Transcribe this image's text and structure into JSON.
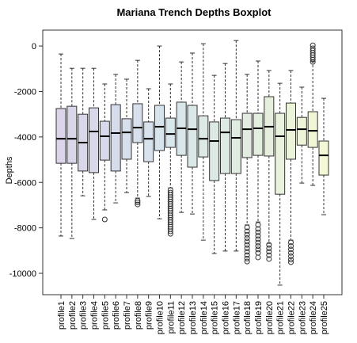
{
  "chart_data": {
    "type": "boxplot",
    "title": "Mariana Trench Depths Boxplot",
    "y_label": "Depths",
    "ylim": [
      -10940,
      700
    ],
    "yticks": [
      0,
      -2000,
      -4000,
      -6000,
      -8000,
      -10000
    ],
    "boxes": [
      {
        "name": "profile1",
        "color": "#dcd4e8",
        "whislo": -8360,
        "q1": -5160,
        "median": -4080,
        "q3": -2750,
        "whishi": -350,
        "fliers": []
      },
      {
        "name": "profile2",
        "color": "#dad6e9",
        "whislo": -8470,
        "q1": -5160,
        "median": -4080,
        "q3": -2650,
        "whishi": -980,
        "fliers": []
      },
      {
        "name": "profile3",
        "color": "#d9d7ea",
        "whislo": -6590,
        "q1": -5500,
        "median": -4250,
        "q3": -3000,
        "whishi": -980,
        "fliers": []
      },
      {
        "name": "profile4",
        "color": "#d8d8ea",
        "whislo": -7630,
        "q1": -5570,
        "median": -3760,
        "q3": -2720,
        "whishi": -980,
        "fliers": []
      },
      {
        "name": "profile5",
        "color": "#d7daeb",
        "whislo": -7210,
        "q1": -5020,
        "median": -3970,
        "q3": -3310,
        "whishi": -1670,
        "fliers": [
          -7630
        ]
      },
      {
        "name": "profile6",
        "color": "#d7dcec",
        "whislo": -6900,
        "q1": -5500,
        "median": -3830,
        "q3": -2580,
        "whishi": -1250,
        "fliers": []
      },
      {
        "name": "profile7",
        "color": "#d7deec",
        "whislo": -6450,
        "q1": -4980,
        "median": -3800,
        "q3": -3200,
        "whishi": -1460,
        "fliers": []
      },
      {
        "name": "profile8",
        "color": "#d7e0ec",
        "whislo": -6690,
        "q1": -4250,
        "median": -3590,
        "q3": -2540,
        "whishi": -630,
        "fliers": [
          -6800,
          -6880,
          -6970
        ]
      },
      {
        "name": "profile9",
        "color": "#d8e2ec",
        "whislo": -6620,
        "q1": -5090,
        "median": -4080,
        "q3": -3340,
        "whishi": -1880,
        "fliers": []
      },
      {
        "name": "profile10",
        "color": "#d8e4ec",
        "whislo": -7600,
        "q1": -4600,
        "median": -3550,
        "q3": -2610,
        "whishi": 0,
        "fliers": []
      },
      {
        "name": "profile11",
        "color": "#d9e6ec",
        "whislo": -6240,
        "q1": -4460,
        "median": -3870,
        "q3": -3170,
        "whishi": -1670,
        "fliers": [
          -6340,
          -6450,
          -6550,
          -6650,
          -6750,
          -6850,
          -6950,
          -7050,
          -7150,
          -7250,
          -7350,
          -7450,
          -7550,
          -7650,
          -7750,
          -7850,
          -7950,
          -8050,
          -8150,
          -8260
        ]
      },
      {
        "name": "profile12",
        "color": "#dae7ea",
        "whislo": -7320,
        "q1": -4810,
        "median": -3620,
        "q3": -2470,
        "whishi": -700,
        "fliers": []
      },
      {
        "name": "profile13",
        "color": "#dbe8e8",
        "whislo": -7390,
        "q1": -5330,
        "median": -3660,
        "q3": -2610,
        "whishi": -310,
        "fliers": []
      },
      {
        "name": "profile14",
        "color": "#dce9e7",
        "whislo": -8540,
        "q1": -4880,
        "median": -4080,
        "q3": -3070,
        "whishi": 100,
        "fliers": []
      },
      {
        "name": "profile15",
        "color": "#dde9e5",
        "whislo": -9130,
        "q1": -5920,
        "median": -4180,
        "q3": -3340,
        "whishi": -1290,
        "fliers": []
      },
      {
        "name": "profile16",
        "color": "#deeae4",
        "whislo": -9020,
        "q1": -5610,
        "median": -3800,
        "q3": -3170,
        "whishi": -770,
        "fliers": []
      },
      {
        "name": "profile17",
        "color": "#e0ebe2",
        "whislo": -9020,
        "q1": -5610,
        "median": -4040,
        "q3": -3240,
        "whishi": 240,
        "fliers": []
      },
      {
        "name": "profile18",
        "color": "#e2ece0",
        "whislo": -7870,
        "q1": -4910,
        "median": -3660,
        "q3": -2960,
        "whishi": -1250,
        "fliers": [
          -7980,
          -8150,
          -8300,
          -8450,
          -8600,
          -8750,
          -8900,
          -9050,
          -9200,
          -9350,
          -9480
        ]
      },
      {
        "name": "profile19",
        "color": "#e4eedf",
        "whislo": -7740,
        "q1": -4810,
        "median": -3620,
        "q3": -2960,
        "whishi": -660,
        "fliers": [
          -7870,
          -8050,
          -8200,
          -8350,
          -8500,
          -8650,
          -8800,
          -8950,
          -9100,
          -9300
        ]
      },
      {
        "name": "profile20",
        "color": "#e6efdd",
        "whislo": -8680,
        "q1": -4840,
        "median": -3550,
        "q3": -2230,
        "whishi": -1080,
        "fliers": [
          -8750,
          -8900,
          -9050,
          -9200,
          -9370
        ]
      },
      {
        "name": "profile21",
        "color": "#e8f1db",
        "whislo": -10520,
        "q1": -6520,
        "median": -3970,
        "q3": -2960,
        "whishi": -1640,
        "fliers": []
      },
      {
        "name": "profile22",
        "color": "#ebf3d9",
        "whislo": -8540,
        "q1": -4980,
        "median": -3690,
        "q3": -2510,
        "whishi": -1080,
        "fliers": [
          -8640,
          -8800,
          -8950,
          -9100,
          -9250,
          -9400,
          -9510
        ]
      },
      {
        "name": "profile23",
        "color": "#eef4d7",
        "whislo": -6030,
        "q1": -4360,
        "median": -3660,
        "q3": -3140,
        "whishi": -1810,
        "fliers": []
      },
      {
        "name": "profile24",
        "color": "#f1f6d6",
        "whislo": -6130,
        "q1": -4460,
        "median": -3730,
        "q3": -2890,
        "whishi": -660,
        "fliers": [
          30,
          -100,
          -200,
          -300,
          -400,
          -500,
          -600,
          -700
        ]
      },
      {
        "name": "profile25",
        "color": "#f4f8d4",
        "whislo": -7420,
        "q1": -5680,
        "median": -4810,
        "q3": -4180,
        "whishi": -2300,
        "fliers": []
      }
    ]
  }
}
